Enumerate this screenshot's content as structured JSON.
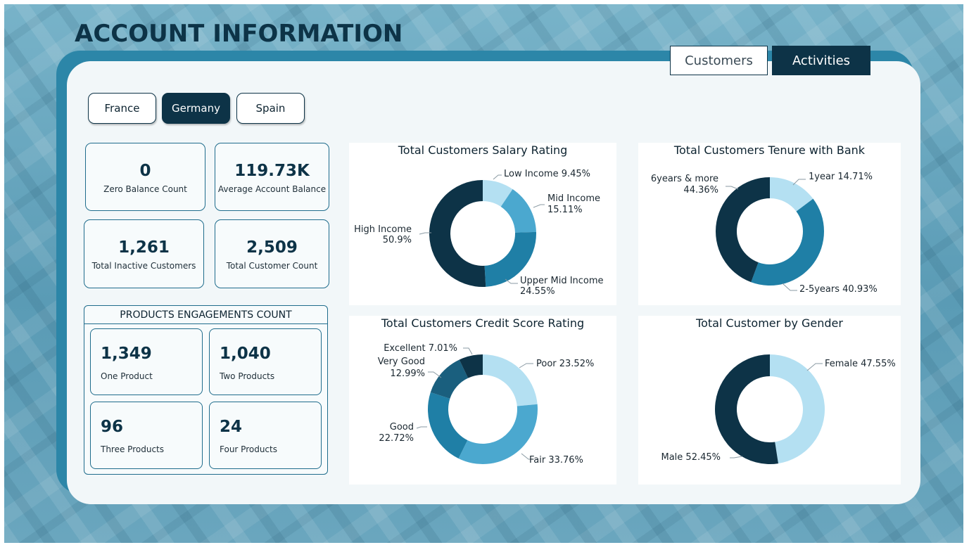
{
  "header": {
    "title": "ACCOUNT INFORMATION"
  },
  "tabs": [
    {
      "label": "Customers",
      "active": false
    },
    {
      "label": "Activities",
      "active": true
    }
  ],
  "countries": [
    {
      "label": "France",
      "active": false
    },
    {
      "label": "Germany",
      "active": true
    },
    {
      "label": "Spain",
      "active": false
    }
  ],
  "kpis": [
    {
      "value": "0",
      "label": "Zero Balance Count"
    },
    {
      "value": "119.73K",
      "label": "Average Account Balance"
    },
    {
      "value": "1,261",
      "label": "Total Inactive Customers"
    },
    {
      "value": "2,509",
      "label": "Total Customer Count"
    }
  ],
  "products": {
    "title": "PRODUCTS ENGAGEMENTS COUNT",
    "items": [
      {
        "value": "1,349",
        "label": "One Product"
      },
      {
        "value": "1,040",
        "label": "Two Products"
      },
      {
        "value": "96",
        "label": "Three Products"
      },
      {
        "value": "24",
        "label": "Four Products"
      }
    ]
  },
  "colors": {
    "dark": "#0d3347",
    "mid": "#1f7fa6",
    "light": "#4ba8cf",
    "pale": "#b4e0f2"
  },
  "chart_data": [
    {
      "type": "pie",
      "title": "Total Customers Salary Rating",
      "categories": [
        "Low Income",
        "Mid Income",
        "Upper Mid Income",
        "High Income"
      ],
      "values": [
        9.45,
        15.11,
        24.55,
        50.9
      ],
      "labels": [
        "Low Income 9.45%",
        "Mid Income",
        "15.11%",
        "Upper Mid Income",
        "24.55%",
        "High Income",
        "50.9%"
      ],
      "colors": [
        "#b4e0f2",
        "#4ba8cf",
        "#1f7fa6",
        "#0d3347"
      ]
    },
    {
      "type": "pie",
      "title": "Total Customers Tenure with Bank",
      "categories": [
        "1year",
        "2-5years",
        "6years & more"
      ],
      "values": [
        14.71,
        40.93,
        44.36
      ],
      "labels": [
        "1year 14.71%",
        "2-5years 40.93%",
        "6years & more",
        "44.36%"
      ],
      "colors": [
        "#b4e0f2",
        "#1f7fa6",
        "#0d3347"
      ]
    },
    {
      "type": "pie",
      "title": "Total Customers Credit Score Rating",
      "categories": [
        "Poor",
        "Fair",
        "Good",
        "Very Good",
        "Excellent"
      ],
      "values": [
        23.52,
        33.76,
        22.72,
        12.99,
        7.01
      ],
      "labels": [
        "Poor 23.52%",
        "Fair 33.76%",
        "Good",
        "22.72%",
        "Very Good",
        "12.99%",
        "Excellent 7.01%"
      ],
      "colors": [
        "#b4e0f2",
        "#4ba8cf",
        "#1f7fa6",
        "#1a5f7e",
        "#0d3347"
      ]
    },
    {
      "type": "pie",
      "title": "Total Customer by Gender",
      "categories": [
        "Female",
        "Male"
      ],
      "values": [
        47.55,
        52.45
      ],
      "labels": [
        "Female 47.55%",
        "Male 52.45%"
      ],
      "colors": [
        "#b4e0f2",
        "#0d3347"
      ]
    }
  ]
}
